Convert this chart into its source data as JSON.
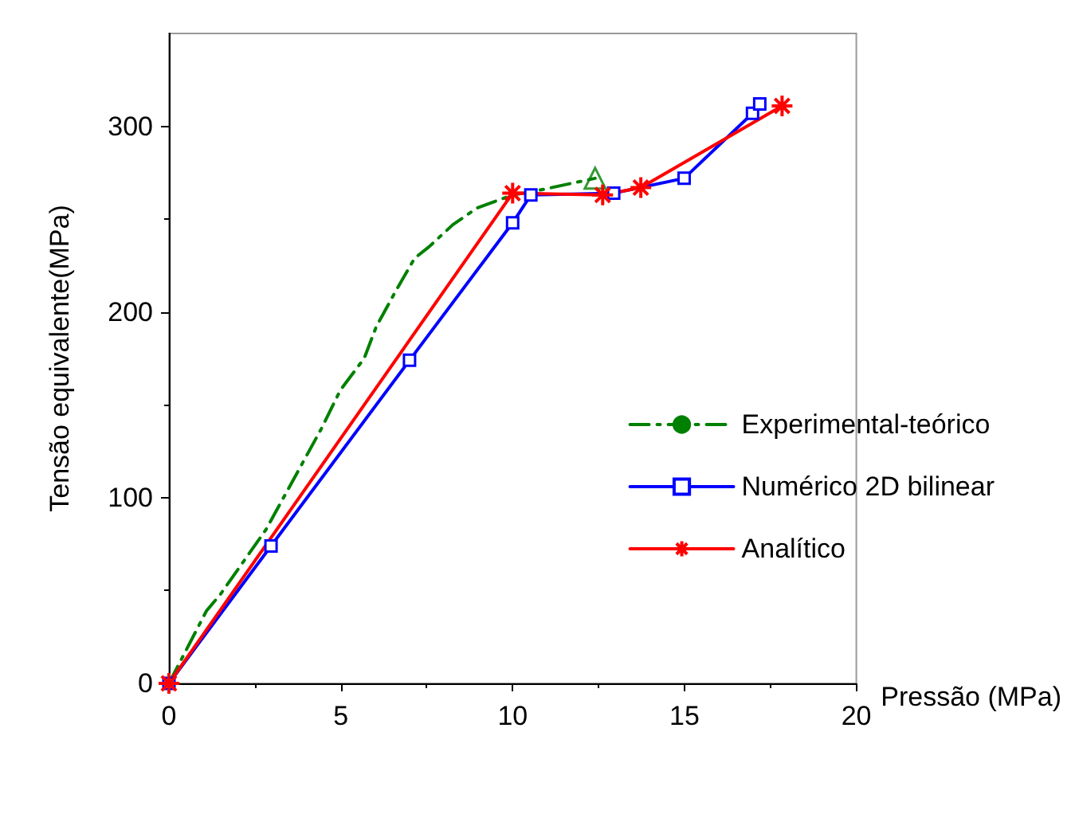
{
  "chart_data": {
    "type": "line",
    "xlabel": "Pressão (MPa)",
    "ylabel": "Tensão equivalente(MPa)",
    "xlim": [
      0,
      20
    ],
    "xticks": [
      0,
      5,
      10,
      15,
      20
    ],
    "ylim": [
      0,
      350
    ],
    "yticks": [
      0,
      100,
      200,
      300
    ],
    "grid": false,
    "legend": "right",
    "series": [
      {
        "name": "Experimental-teórico",
        "color": "#008000",
        "line_style": "dashed",
        "marker": "none",
        "x": [
          0,
          1.09,
          1.5,
          2.83,
          4.43,
          4.99,
          5.68,
          6.03,
          6.59,
          7.15,
          7.56,
          8.26,
          8.96,
          10,
          10.63,
          12.4
        ],
        "values": [
          0,
          39,
          48,
          83,
          137,
          158,
          175,
          192,
          211,
          229,
          235,
          247,
          256,
          263,
          265,
          272
        ]
      },
      {
        "type": "scatter",
        "color": "#008000",
        "marker": "triangle",
        "x": [
          12.4
        ],
        "values": [
          272
        ]
      },
      {
        "name": "Numérico 2D bilinear",
        "color": "#0000ff",
        "line_style": "solid",
        "marker": "square",
        "x": [
          0,
          2.97,
          7.0,
          10,
          10.53,
          12.94,
          14.99,
          16.98,
          17.19
        ],
        "values": [
          0,
          74,
          174,
          248,
          263,
          264,
          272,
          307,
          312
        ]
      },
      {
        "name": "Analítico",
        "color": "#ff0000",
        "line_style": "solid",
        "marker": "cross",
        "x": [
          0,
          10,
          12.62,
          13.73,
          17.84
        ],
        "values": [
          0,
          264,
          263,
          267,
          311
        ]
      }
    ]
  }
}
